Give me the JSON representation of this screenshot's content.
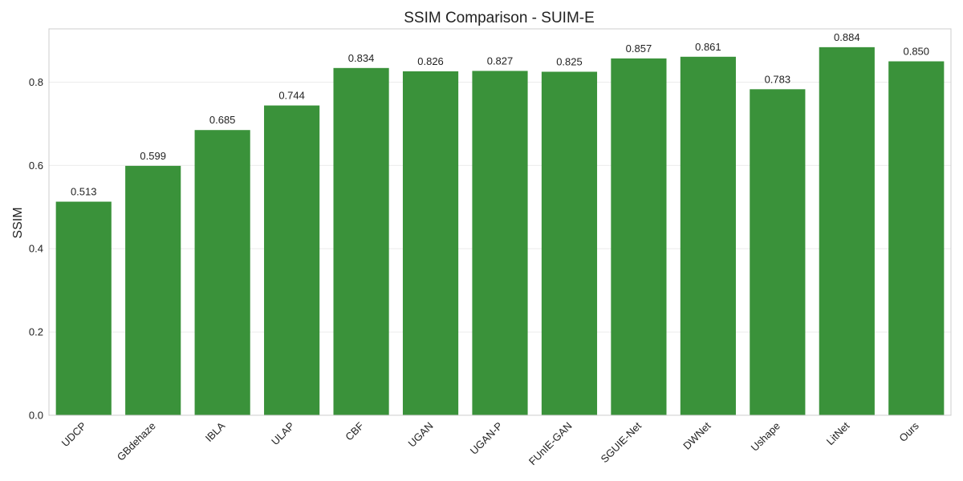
{
  "chart_data": {
    "type": "bar",
    "title": "SSIM Comparison - SUIM-E",
    "xlabel": "",
    "ylabel": "SSIM",
    "categories": [
      "UDCP",
      "GBdehaze",
      "IBLA",
      "ULAP",
      "CBF",
      "UGAN",
      "UGAN-P",
      "FUnIE-GAN",
      "SGUIE-Net",
      "DWNet",
      "Ushape",
      "LitNet",
      "Ours"
    ],
    "values": [
      0.513,
      0.599,
      0.685,
      0.744,
      0.834,
      0.826,
      0.827,
      0.825,
      0.857,
      0.861,
      0.783,
      0.884,
      0.85
    ],
    "value_labels": [
      "0.513",
      "0.599",
      "0.685",
      "0.744",
      "0.834",
      "0.826",
      "0.827",
      "0.825",
      "0.857",
      "0.861",
      "0.783",
      "0.884",
      "0.850"
    ],
    "yticks": [
      0.0,
      0.2,
      0.4,
      0.6,
      0.8
    ],
    "ytick_labels": [
      "0.0",
      "0.2",
      "0.4",
      "0.6",
      "0.8"
    ],
    "ylim": [
      0,
      0.928
    ],
    "grid": true,
    "bar_color": "#3a923a"
  }
}
